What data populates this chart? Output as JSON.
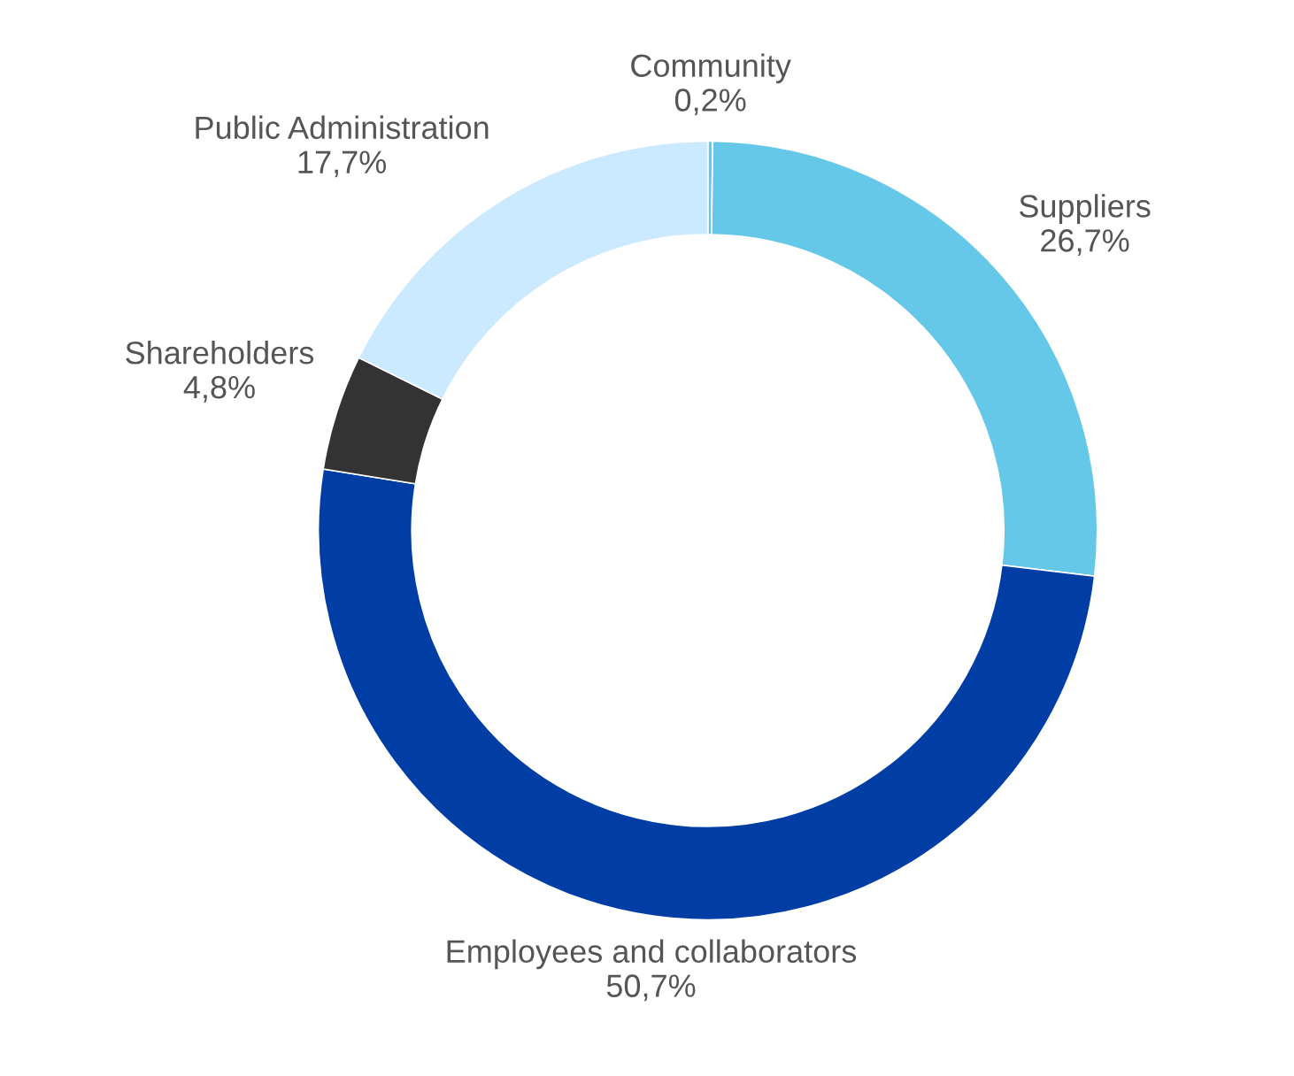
{
  "chart_data": {
    "type": "donut",
    "categories": [
      "Community",
      "Suppliers",
      "Employees and collaborators",
      "Shareholders",
      "Public Administration"
    ],
    "values": [
      0.2,
      26.7,
      50.7,
      4.8,
      17.7
    ],
    "value_labels": [
      "0,2%",
      "26,7%",
      "50,7%",
      "4,8%",
      "17,7%"
    ],
    "colors": [
      "#66c8e8",
      "#66c8e8",
      "#003da5",
      "#333333",
      "#cceaff"
    ],
    "legend": false
  }
}
